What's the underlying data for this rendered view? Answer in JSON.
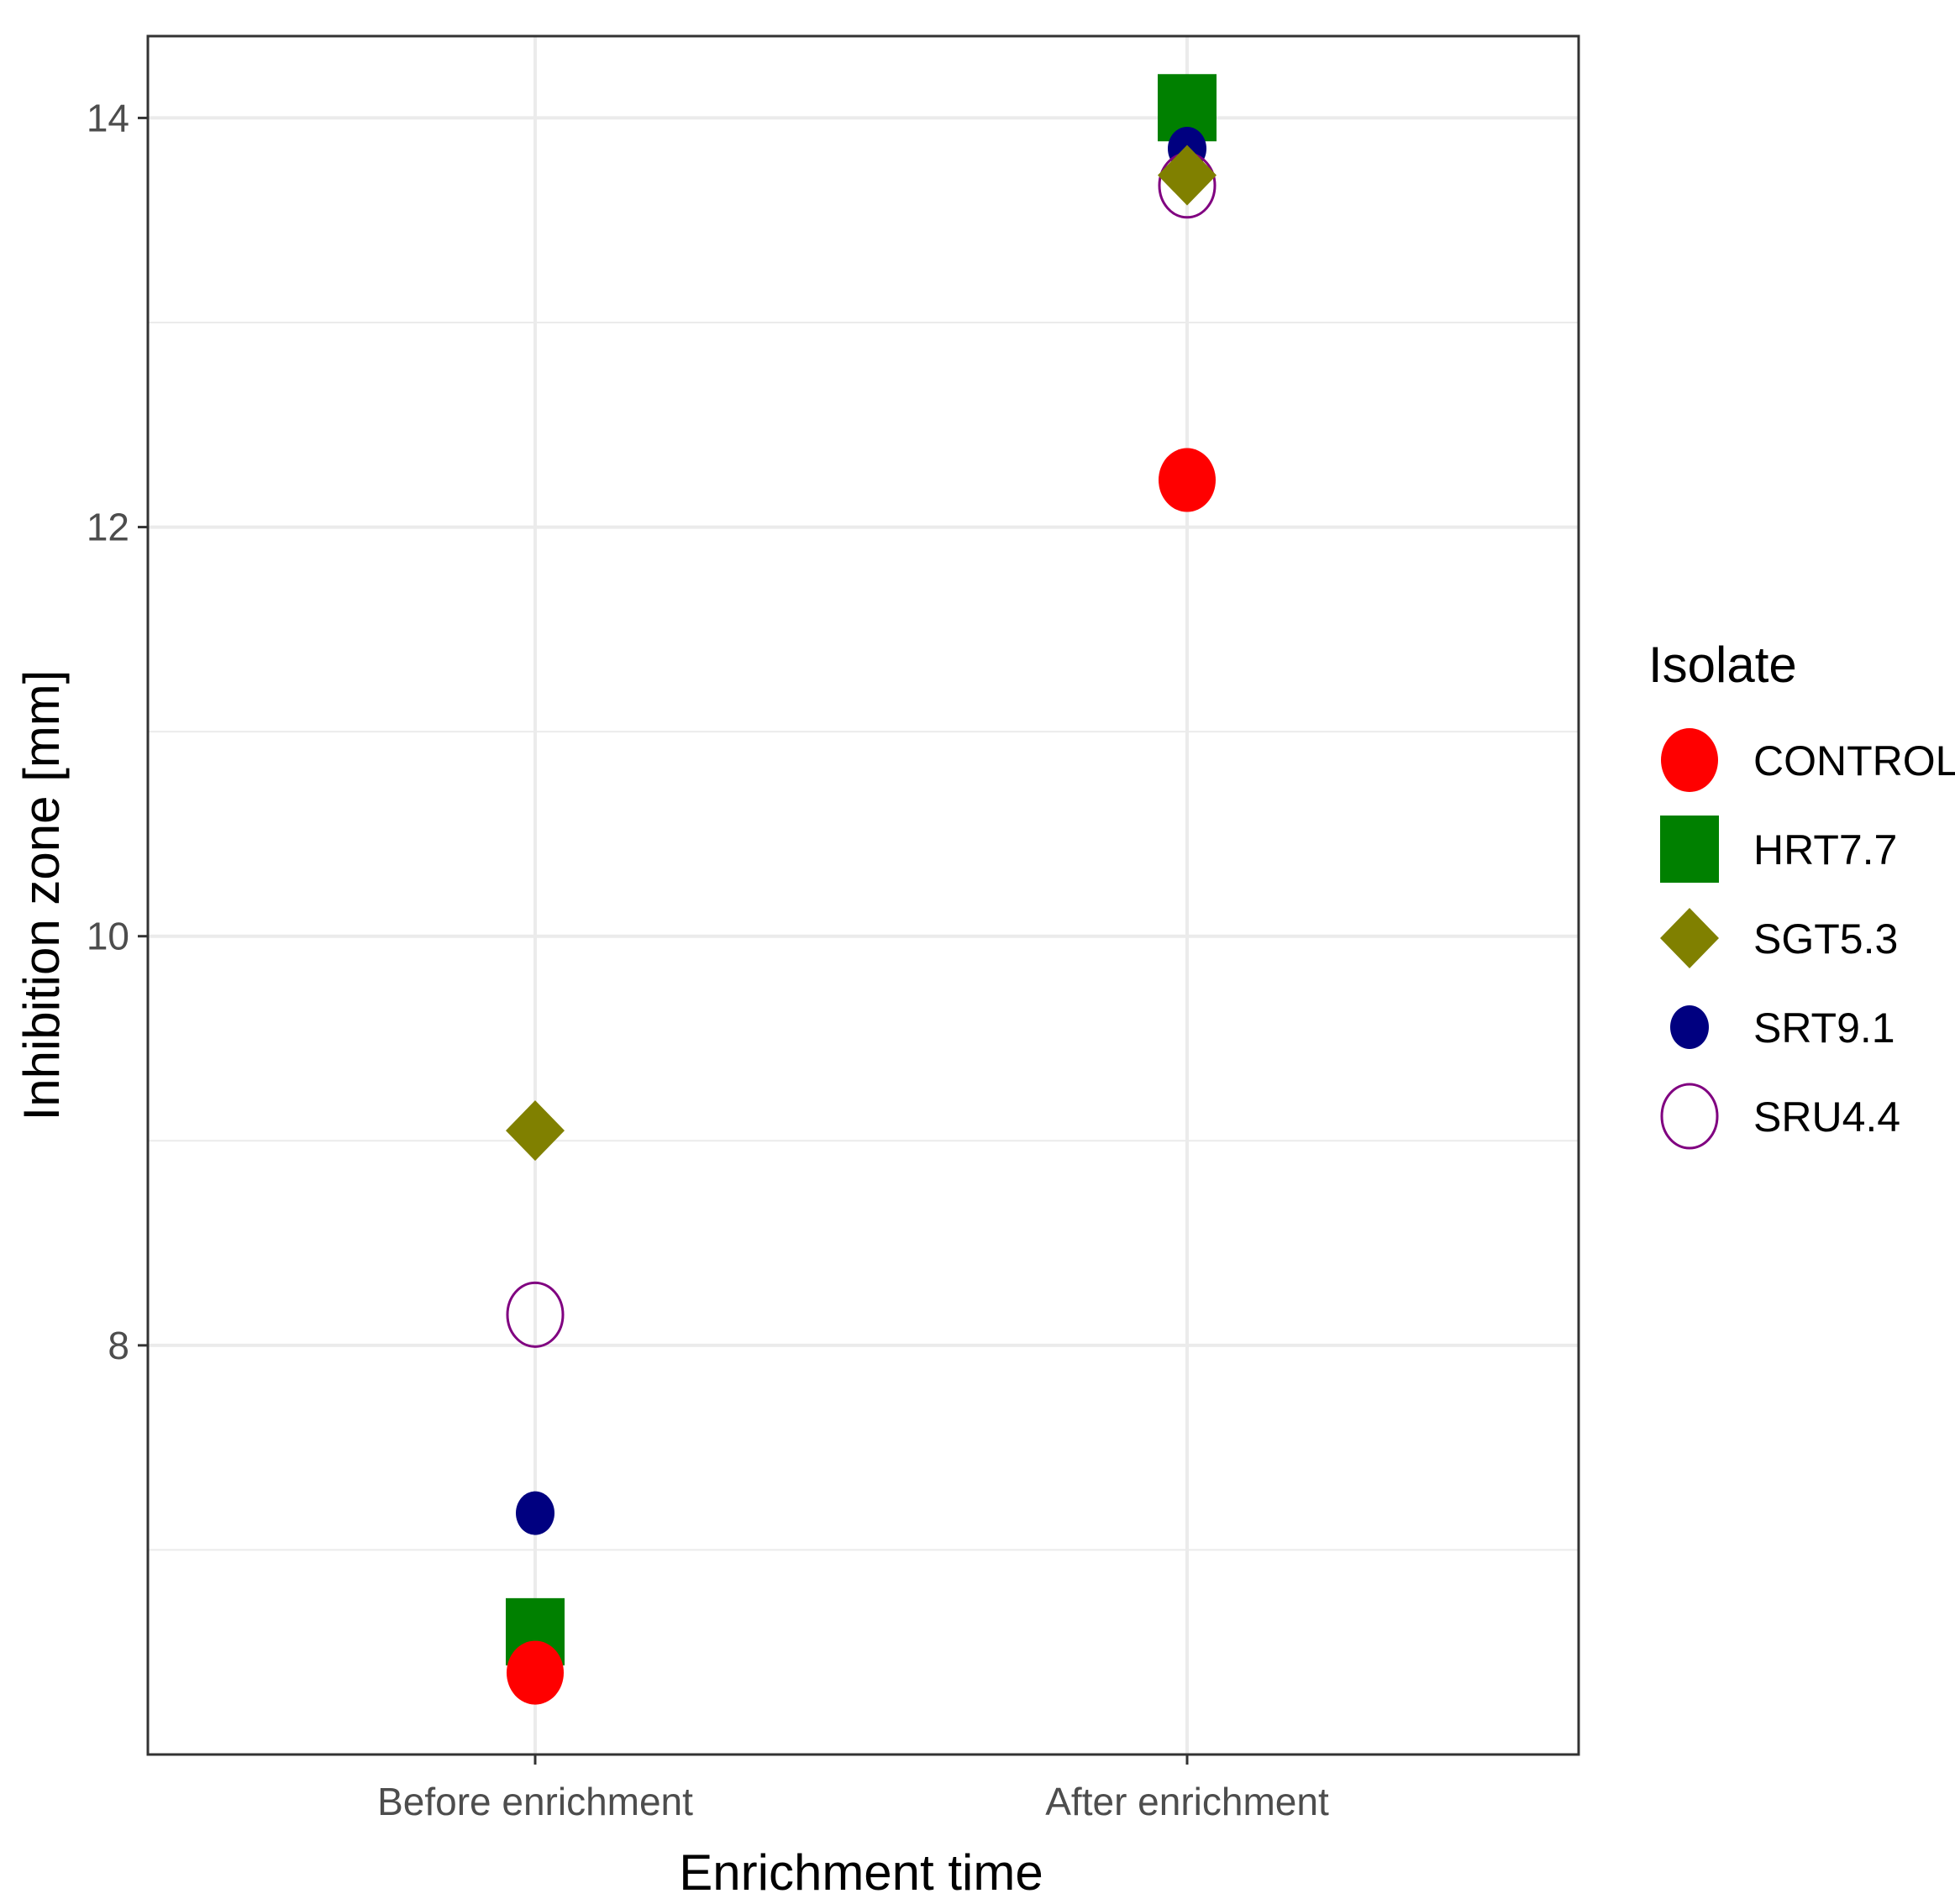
{
  "chart_data": {
    "type": "scatter",
    "title": "",
    "xlabel": "Enrichment time",
    "ylabel": "Inhibition zone [mm]",
    "categories": [
      "Before enrichment",
      "After enrichment"
    ],
    "ylim": [
      6.0,
      14.4
    ],
    "yticks": [
      8,
      10,
      12,
      14
    ],
    "grid": true,
    "legend": {
      "title": "Isolate",
      "position": "right"
    },
    "series": [
      {
        "name": "CONTROL",
        "shape": "filled-circle",
        "color": "#ff0000",
        "values": [
          6.4,
          12.23
        ]
      },
      {
        "name": "HRT7.7",
        "shape": "filled-square",
        "color": "#008000",
        "values": [
          6.6,
          14.05
        ]
      },
      {
        "name": "SGT5.3",
        "shape": "filled-diamond",
        "color": "#808000",
        "values": [
          9.05,
          13.72
        ]
      },
      {
        "name": "SRT9.1",
        "shape": "small-filled-circle",
        "color": "#000080",
        "values": [
          7.18,
          13.85
        ]
      },
      {
        "name": "SRU4.4",
        "shape": "open-circle",
        "color": "#800080",
        "values": [
          8.15,
          13.67
        ]
      }
    ]
  }
}
